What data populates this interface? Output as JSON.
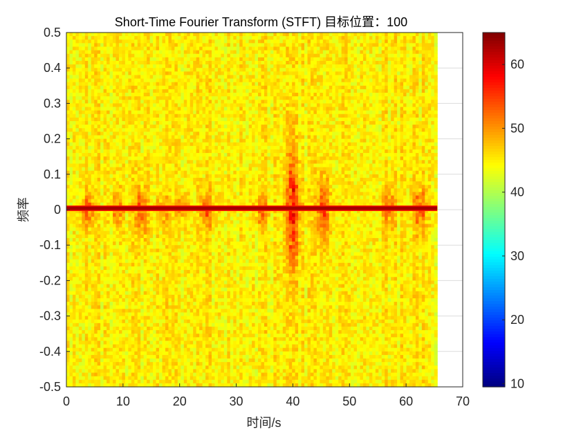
{
  "chart_data": {
    "type": "heatmap",
    "title": "Short-Time Fourier Transform (STFT) 目标位置：100",
    "xlabel": "时间/s",
    "ylabel": "频率",
    "xlim": [
      0,
      70
    ],
    "ylim": [
      -0.5,
      0.5
    ],
    "data_x_extent": [
      0,
      65.5
    ],
    "xticks": [
      0,
      10,
      20,
      30,
      40,
      50,
      60,
      70
    ],
    "yticks": [
      -0.5,
      -0.4,
      -0.3,
      -0.2,
      -0.1,
      0,
      0.1,
      0.2,
      0.3,
      0.4,
      0.5
    ],
    "xtick_labels": [
      "0",
      "10",
      "20",
      "30",
      "40",
      "50",
      "60",
      "70"
    ],
    "ytick_labels": [
      "-0.5",
      "-0.4",
      "-0.3",
      "-0.2",
      "-0.1",
      "0",
      "0.1",
      "0.2",
      "0.3",
      "0.4",
      "0.5"
    ],
    "grid": true,
    "colormap": "jet",
    "colorbar": {
      "range": [
        9.5,
        65
      ],
      "ticks": [
        10,
        20,
        30,
        40,
        50,
        60
      ],
      "tick_labels": [
        "10",
        "20",
        "30",
        "40",
        "50",
        "60"
      ]
    },
    "background_level": 45,
    "tone_line": {
      "frequency": 0.004,
      "level": 63
    },
    "bursts": [
      {
        "time": 3.8,
        "level": 52,
        "bandwidth": 0.05
      },
      {
        "time": 9.0,
        "level": 51,
        "bandwidth": 0.05
      },
      {
        "time": 13.2,
        "level": 53,
        "bandwidth": 0.07
      },
      {
        "time": 17.0,
        "level": 50,
        "bandwidth": 0.04
      },
      {
        "time": 20.5,
        "level": 50,
        "bandwidth": 0.04
      },
      {
        "time": 24.8,
        "level": 52,
        "bandwidth": 0.05
      },
      {
        "time": 34.6,
        "level": 51,
        "bandwidth": 0.05
      },
      {
        "time": 40.0,
        "level": 56,
        "bandwidth": 0.16
      },
      {
        "time": 45.3,
        "level": 54,
        "bandwidth": 0.09
      },
      {
        "time": 57.0,
        "level": 52,
        "bandwidth": 0.06
      },
      {
        "time": 62.5,
        "level": 53,
        "bandwidth": 0.06
      }
    ]
  }
}
